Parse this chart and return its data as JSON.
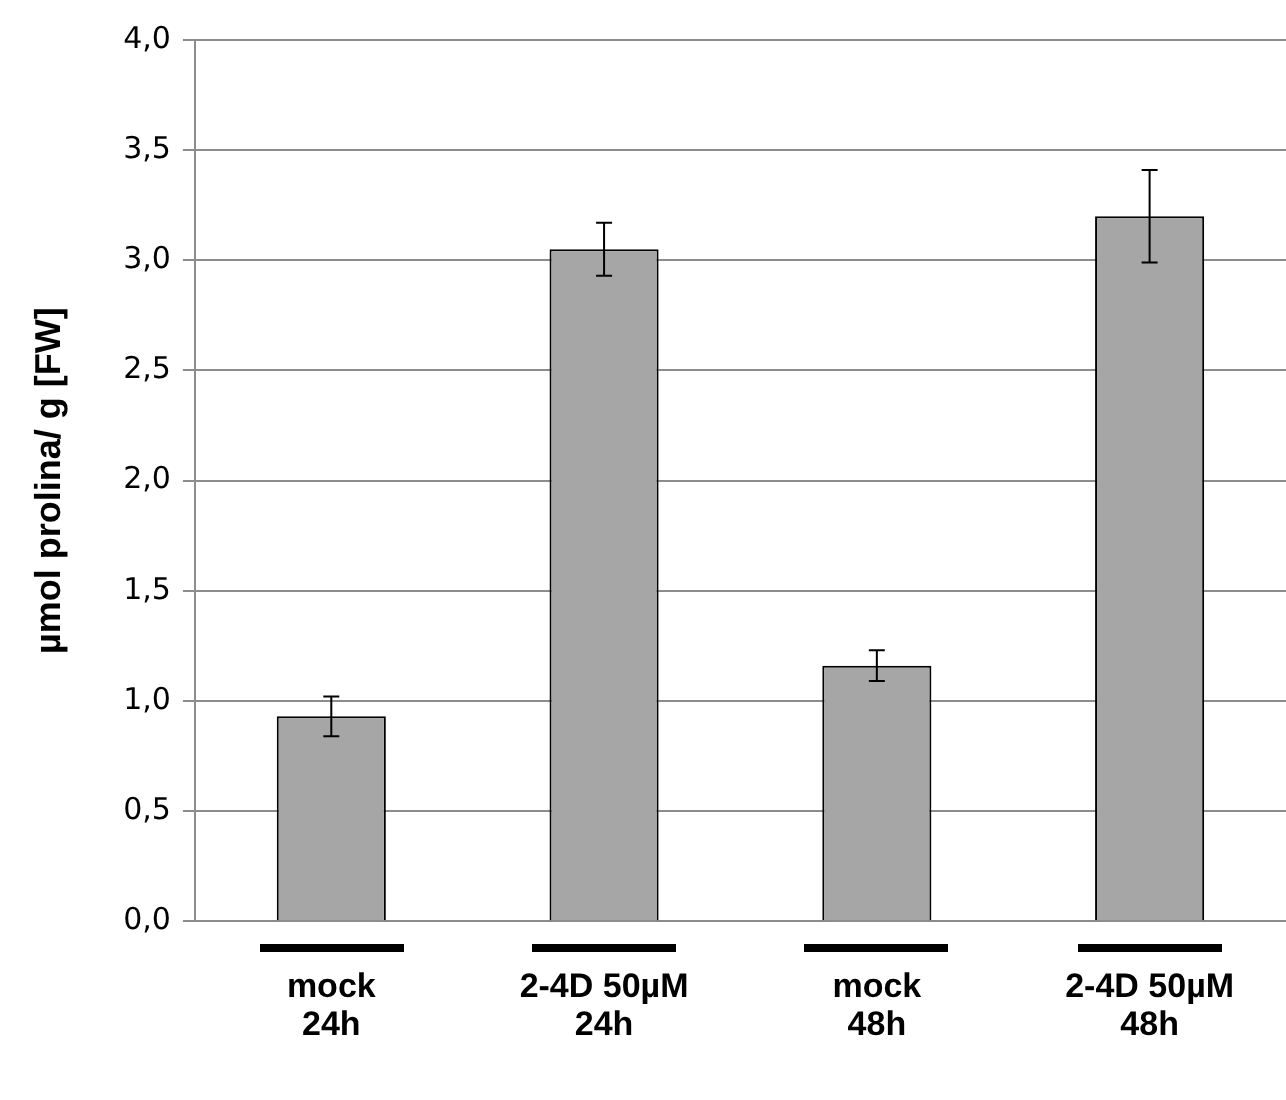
{
  "chart_data": {
    "type": "bar",
    "ylabel": "µmol prolina/ g [FW]",
    "categories": [
      "mock 24h",
      "2-4D 50µM 24h",
      "mock 48h",
      "2-4D 50µM 48h"
    ],
    "values": [
      0.93,
      3.05,
      1.16,
      3.2
    ],
    "errors": [
      0.09,
      0.12,
      0.07,
      0.21
    ],
    "color": "#a6a6a6",
    "ylim": [
      0,
      4
    ],
    "yticks": [
      {
        "value": 0,
        "label": "0,0"
      },
      {
        "value": 0.5,
        "label": "0,5"
      },
      {
        "value": 1,
        "label": "1,0"
      },
      {
        "value": 1.5,
        "label": "1,5"
      },
      {
        "value": 2,
        "label": "2,0"
      },
      {
        "value": 2.5,
        "label": "2,5"
      },
      {
        "value": 3,
        "label": "3,0"
      },
      {
        "value": 3.5,
        "label": "3,5"
      },
      {
        "value": 4,
        "label": "4,0"
      }
    ],
    "grid": "y",
    "legend": false
  }
}
